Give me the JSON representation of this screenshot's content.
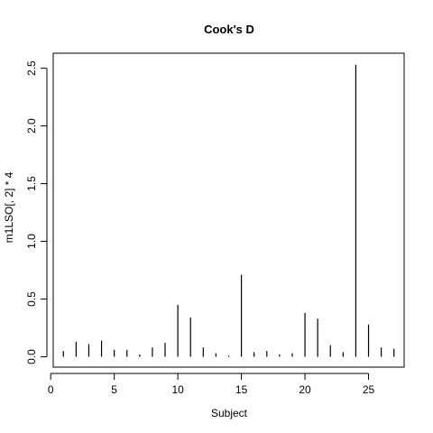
{
  "chart_data": {
    "type": "bar",
    "style": "histogram-spikes",
    "title": "Cook's D",
    "xlabel": "Subject",
    "ylabel": "m1LSO[, 2] * 4",
    "xlim": [
      0.2,
      27.8
    ],
    "ylim": [
      -0.09,
      2.63
    ],
    "x_ticks": [
      0,
      5,
      10,
      15,
      20,
      25
    ],
    "x_tick_labels": [
      "0",
      "5",
      "10",
      "15",
      "20",
      "25"
    ],
    "y_ticks": [
      0,
      0.5,
      1.0,
      1.5,
      2.0,
      2.5
    ],
    "y_tick_labels": [
      "0.0",
      "0.5",
      "1.0",
      "1.5",
      "2.0",
      "2.5"
    ],
    "grid": false,
    "legend": "none",
    "x": [
      1,
      2,
      3,
      4,
      5,
      6,
      7,
      8,
      9,
      10,
      11,
      12,
      13,
      14,
      15,
      16,
      17,
      18,
      19,
      20,
      21,
      22,
      23,
      24,
      25,
      26,
      27
    ],
    "values": [
      0.05,
      0.13,
      0.11,
      0.14,
      0.06,
      0.06,
      0.02,
      0.08,
      0.12,
      0.45,
      0.34,
      0.08,
      0.03,
      0.01,
      0.71,
      0.04,
      0.05,
      0.02,
      0.03,
      0.38,
      0.33,
      0.1,
      0.04,
      2.53,
      0.28,
      0.08,
      0.07
    ],
    "colors": {
      "spike": "#000000",
      "axis": "#000000",
      "background": "#ffffff"
    }
  }
}
